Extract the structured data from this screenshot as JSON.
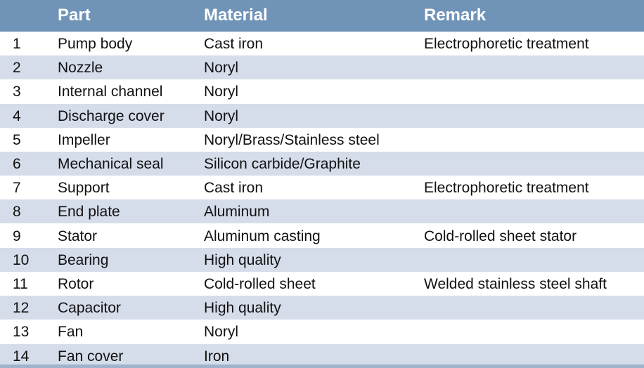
{
  "header": {
    "col_num": "",
    "part": "Part",
    "material": "Material",
    "remark": "Remark"
  },
  "rows": [
    {
      "num": "1",
      "part": "Pump body",
      "material": "Cast iron",
      "remark": "Electrophoretic treatment"
    },
    {
      "num": "2",
      "part": "Nozzle",
      "material": "Noryl",
      "remark": ""
    },
    {
      "num": "3",
      "part": "Internal channel",
      "material": "Noryl",
      "remark": ""
    },
    {
      "num": "4",
      "part": "Discharge cover",
      "material": "Noryl",
      "remark": ""
    },
    {
      "num": "5",
      "part": "Impeller",
      "material": "Noryl/Brass/Stainless steel",
      "remark": ""
    },
    {
      "num": "6",
      "part": "Mechanical seal",
      "material": "Silicon carbide/Graphite",
      "remark": ""
    },
    {
      "num": "7",
      "part": "Support",
      "material": "Cast iron",
      "remark": "Electrophoretic treatment"
    },
    {
      "num": "8",
      "part": "End plate",
      "material": "Aluminum",
      "remark": ""
    },
    {
      "num": "9",
      "part": "Stator",
      "material": "Aluminum casting",
      "remark": "Cold-rolled sheet stator"
    },
    {
      "num": "10",
      "part": "Bearing",
      "material": "High quality",
      "remark": ""
    },
    {
      "num": "11",
      "part": "Rotor",
      "material": "Cold-rolled sheet",
      "remark": "Welded stainless steel shaft"
    },
    {
      "num": "12",
      "part": "Capacitor",
      "material": "High quality",
      "remark": ""
    },
    {
      "num": "13",
      "part": "Fan",
      "material": "Noryl",
      "remark": ""
    },
    {
      "num": "14",
      "part": "Fan cover",
      "material": "Iron",
      "remark": ""
    }
  ],
  "colors": {
    "header": "#7094b7",
    "band": "#d5dcea"
  }
}
